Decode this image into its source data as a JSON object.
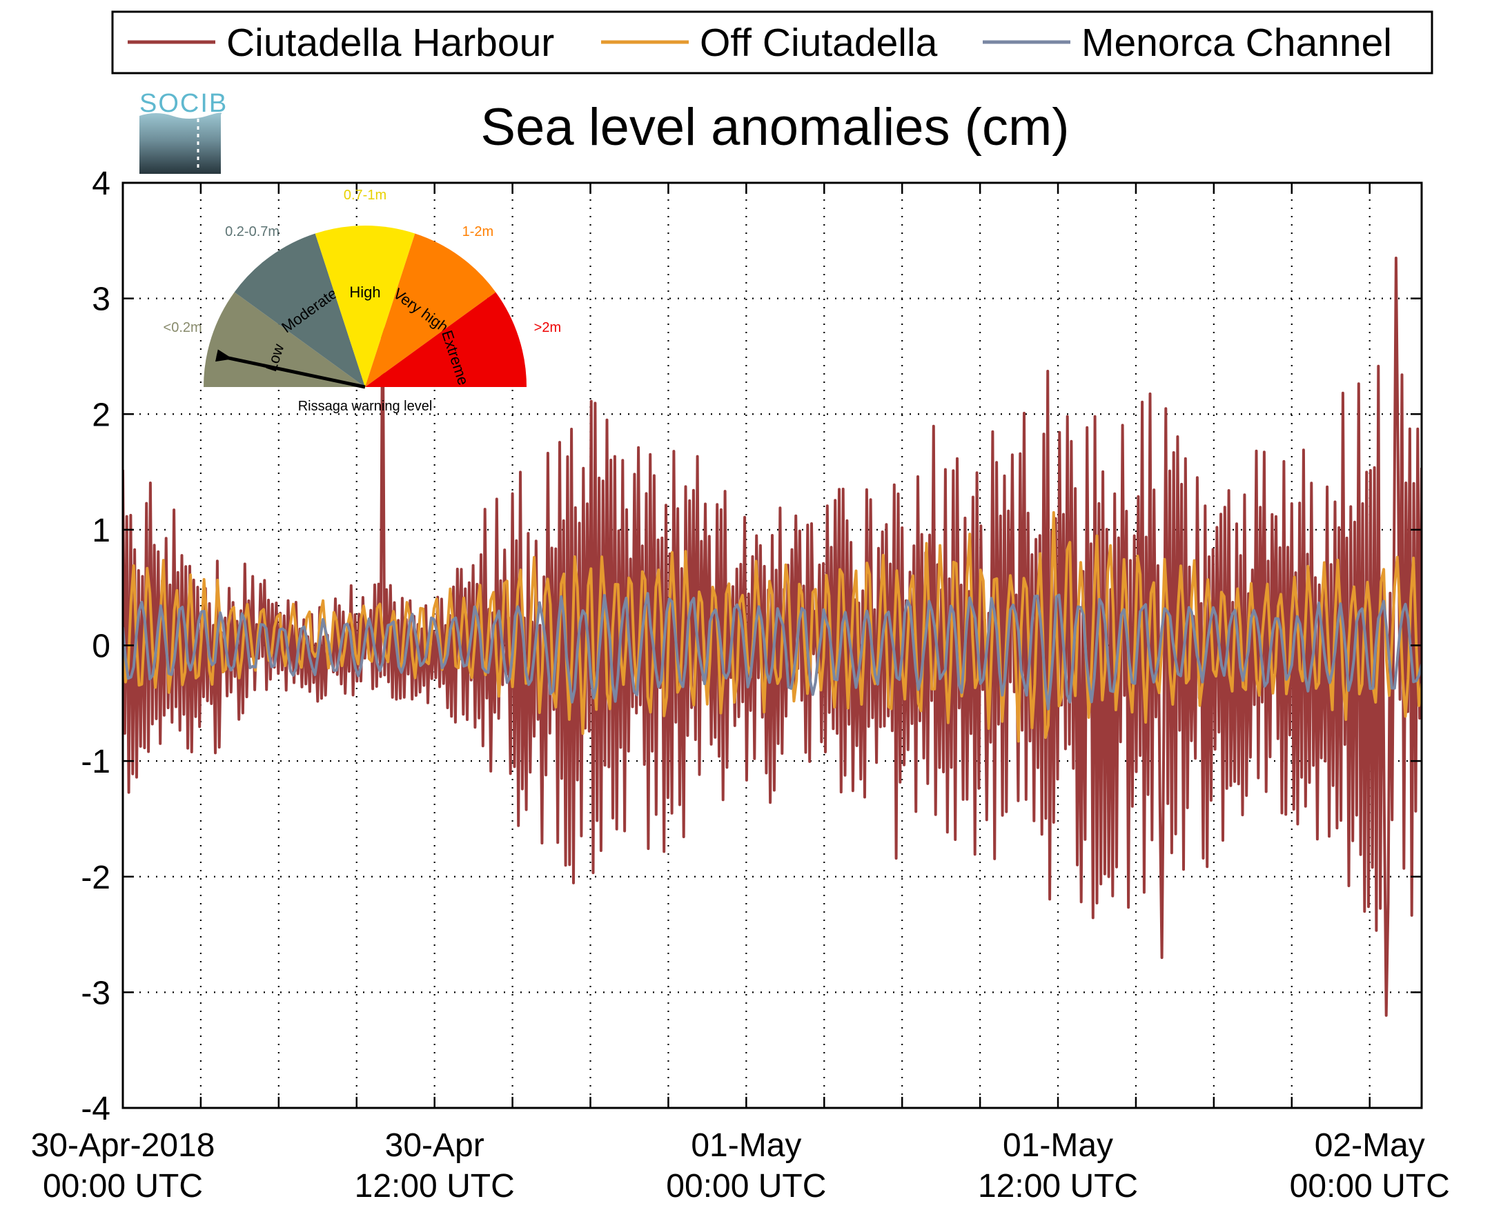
{
  "chart_data": {
    "type": "line",
    "title": "Sea level anomalies (cm)",
    "xlabel": "",
    "ylabel": "",
    "ylim": [
      -4,
      4
    ],
    "yticks": [
      -4,
      -3,
      -2,
      -1,
      0,
      1,
      2,
      3,
      4
    ],
    "ytick_labels": [
      "-4",
      "-3",
      "-2",
      "-1",
      "0",
      "1",
      "2",
      "3",
      "4"
    ],
    "x_start": "2018-04-30T00:00Z",
    "x_end": "2018-05-02T02:00Z",
    "xticks_minor_hours": 3,
    "grid": "dotted",
    "xtick_labels": [
      {
        "time": "2018-04-30T00:00Z",
        "date": "30-Apr-2018",
        "time_label": "00:00 UTC"
      },
      {
        "time": "2018-04-30T12:00Z",
        "date": "30-Apr",
        "time_label": "12:00 UTC"
      },
      {
        "time": "2018-05-01T00:00Z",
        "date": "01-May",
        "time_label": "00:00 UTC"
      },
      {
        "time": "2018-05-01T12:00Z",
        "date": "01-May",
        "time_label": "12:00 UTC"
      },
      {
        "time": "2018-05-02T00:00Z",
        "date": "02-May",
        "time_label": "00:00 UTC"
      }
    ],
    "legend_position": "top",
    "series": [
      {
        "name": "Ciutadella Harbour",
        "color": "#9B3B3B",
        "time_step_minutes": 10,
        "amplitude_envelope": [
          {
            "time": "2018-04-30T00:00Z",
            "peak": 1.6
          },
          {
            "time": "2018-04-30T03:00Z",
            "peak": 1.0
          },
          {
            "time": "2018-04-30T06:00Z",
            "peak": 0.4
          },
          {
            "time": "2018-04-30T09:00Z",
            "peak": 0.5
          },
          {
            "time": "2018-04-30T12:00Z",
            "peak": 0.5
          },
          {
            "time": "2018-04-30T15:00Z",
            "peak": 1.5
          },
          {
            "time": "2018-04-30T18:00Z",
            "peak": 2.3
          },
          {
            "time": "2018-04-30T21:00Z",
            "peak": 1.8
          },
          {
            "time": "2018-05-01T00:00Z",
            "peak": 1.3
          },
          {
            "time": "2018-05-01T03:00Z",
            "peak": 1.2
          },
          {
            "time": "2018-05-01T06:00Z",
            "peak": 1.9
          },
          {
            "time": "2018-05-01T09:00Z",
            "peak": 1.9
          },
          {
            "time": "2018-05-01T12:00Z",
            "peak": 2.4
          },
          {
            "time": "2018-05-01T15:00Z",
            "peak": 2.3
          },
          {
            "time": "2018-05-01T18:00Z",
            "peak": 1.8
          },
          {
            "time": "2018-05-01T21:00Z",
            "peak": 1.6
          },
          {
            "time": "2018-05-02T00:00Z",
            "peak": 2.7
          },
          {
            "time": "2018-05-02T02:00Z",
            "peak": 2.2
          }
        ],
        "extremes": [
          {
            "time": "2018-04-30T10:00Z",
            "value": 3.2
          },
          {
            "time": "2018-05-01T16:00Z",
            "value": -2.7
          },
          {
            "time": "2018-05-02T01:00Z",
            "value": 3.35
          },
          {
            "time": "2018-05-02T00:40Z",
            "value": -3.2
          }
        ]
      },
      {
        "name": "Off Ciutadella",
        "color": "#E59A2F",
        "time_step_minutes": 10,
        "amplitude_envelope": [
          {
            "time": "2018-04-30T00:00Z",
            "peak": 0.8
          },
          {
            "time": "2018-04-30T06:00Z",
            "peak": 0.3
          },
          {
            "time": "2018-04-30T12:00Z",
            "peak": 0.4
          },
          {
            "time": "2018-04-30T18:00Z",
            "peak": 0.9
          },
          {
            "time": "2018-05-01T00:00Z",
            "peak": 0.7
          },
          {
            "time": "2018-05-01T06:00Z",
            "peak": 0.8
          },
          {
            "time": "2018-05-01T12:00Z",
            "peak": 1.1
          },
          {
            "time": "2018-05-01T18:00Z",
            "peak": 0.6
          },
          {
            "time": "2018-05-02T02:00Z",
            "peak": 0.8
          }
        ]
      },
      {
        "name": "Menorca Channel",
        "color": "#7A87A3",
        "time_step_minutes": 10,
        "amplitude_envelope": [
          {
            "time": "2018-04-30T00:00Z",
            "peak": 0.4
          },
          {
            "time": "2018-04-30T06:00Z",
            "peak": 0.25
          },
          {
            "time": "2018-04-30T12:00Z",
            "peak": 0.3
          },
          {
            "time": "2018-04-30T18:00Z",
            "peak": 0.5
          },
          {
            "time": "2018-05-01T00:00Z",
            "peak": 0.4
          },
          {
            "time": "2018-05-01T06:00Z",
            "peak": 0.4
          },
          {
            "time": "2018-05-01T12:00Z",
            "peak": 0.55
          },
          {
            "time": "2018-05-01T18:00Z",
            "peak": 0.35
          },
          {
            "time": "2018-05-02T02:00Z",
            "peak": 0.5
          }
        ]
      }
    ]
  },
  "logo": {
    "text": "SOCIB"
  },
  "gauge": {
    "caption": "Rissaga warning level",
    "current_level": "Low",
    "sectors": [
      {
        "label": "Low",
        "range": "<0.2m",
        "color": "#878A6B",
        "range_color": "#878A6B"
      },
      {
        "label": "Moderate",
        "range": "0.2-0.7m",
        "color": "#5D7474",
        "range_color": "#5D7474"
      },
      {
        "label": "High",
        "range": "0.7-1m",
        "color": "#FFE600",
        "range_color": "#E8D100"
      },
      {
        "label": "Very high",
        "range": "1-2m",
        "color": "#FF7F00",
        "range_color": "#FF7F00"
      },
      {
        "label": "Extreme",
        "range": ">2m",
        "color": "#EE0000",
        "range_color": "#EE0000"
      }
    ]
  }
}
